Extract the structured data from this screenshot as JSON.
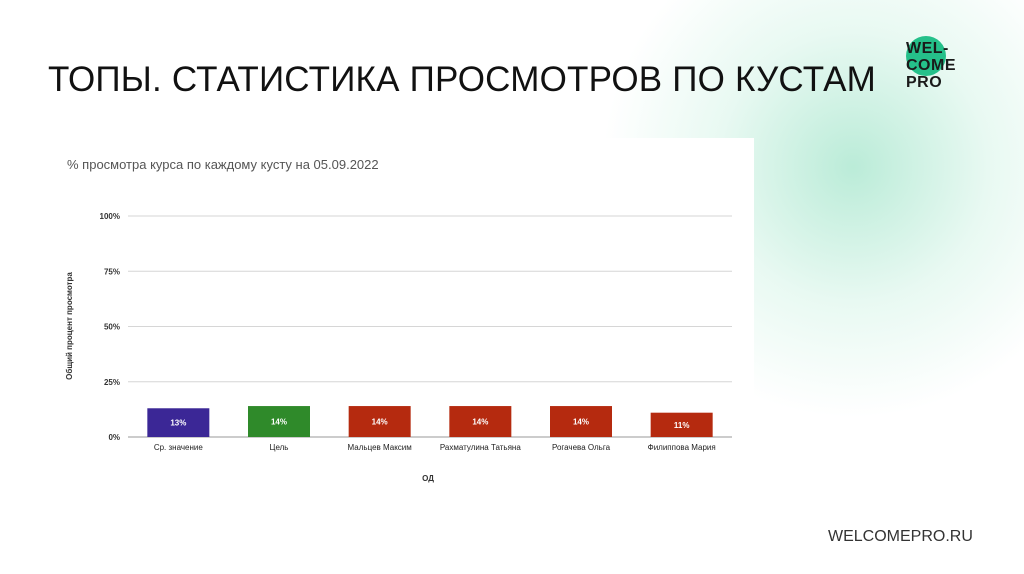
{
  "slide": {
    "title": "ТОПЫ. СТАТИСТИКА ПРОСМОТРОВ ПО КУСТАМ",
    "footer": "WELCOMEPRO.RU",
    "logo_lines": [
      "WEL-",
      "COME",
      "PRO"
    ],
    "accent_color": "#25c08a"
  },
  "chart_data": {
    "type": "bar",
    "title": "% просмотра курса по каждому кусту на 05.09.2022",
    "xlabel": "ОД",
    "ylabel": "Общий процент просмотра",
    "ylim": [
      0,
      100
    ],
    "yticks": [
      0,
      25,
      50,
      75,
      100
    ],
    "ytick_labels": [
      "0%",
      "25%",
      "50%",
      "75%",
      "100%"
    ],
    "grid": true,
    "categories": [
      "Ср. значение",
      "Цель",
      "Мальцев Максим",
      "Рахматулина Татьяна",
      "Рогачева Ольга",
      "Филиппова Мария"
    ],
    "values": [
      13,
      14,
      14,
      14,
      14,
      11
    ],
    "value_labels": [
      "13%",
      "14%",
      "14%",
      "14%",
      "14%",
      "11%"
    ],
    "colors": [
      "#3b2796",
      "#2f8a2a",
      "#b52a0f",
      "#b52a0f",
      "#b52a0f",
      "#b52a0f"
    ]
  }
}
